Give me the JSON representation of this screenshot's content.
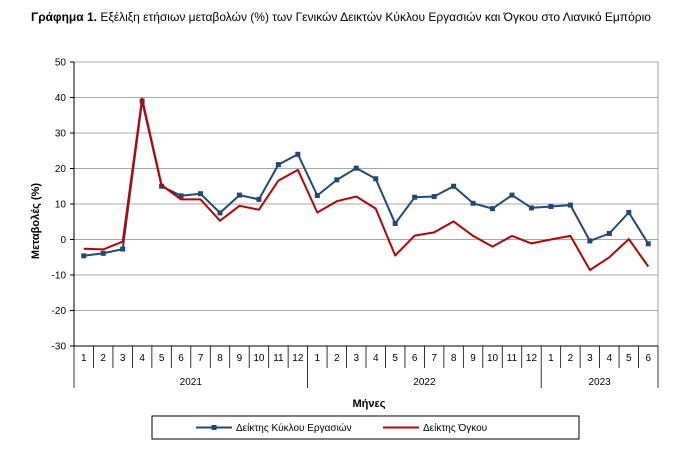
{
  "figure": {
    "label": "Γράφημα 1.",
    "caption": "Εξέλιξη ετήσιων μεταβολών (%) των Γενικών Δεικτών Κύκλου Εργασιών και Όγκου στο Λιανικό Εμπόριο"
  },
  "colors": {
    "turnover": "#1F497D",
    "volume": "#C00000",
    "grid": "#8C8C8C",
    "axis": "#000000"
  },
  "chart_data": {
    "type": "line",
    "ylabel": "Μεταβολές (%)",
    "xlabel": "Μήνες",
    "ylim": [
      -30,
      50
    ],
    "yticks": [
      -30,
      -20,
      -10,
      0,
      10,
      20,
      30,
      40,
      50
    ],
    "grid": true,
    "legend_position": "bottom",
    "months": [
      "1",
      "2",
      "3",
      "4",
      "5",
      "6",
      "7",
      "8",
      "9",
      "10",
      "11",
      "12",
      "1",
      "2",
      "3",
      "4",
      "5",
      "6",
      "7",
      "8",
      "9",
      "10",
      "11",
      "12",
      "1",
      "2",
      "3",
      "4",
      "5",
      "6"
    ],
    "years": [
      {
        "label": "2021",
        "count": 12
      },
      {
        "label": "2022",
        "count": 12
      },
      {
        "label": "2023",
        "count": 6
      }
    ],
    "series": [
      {
        "name": "Δείκτης Κύκλου Εργασιών",
        "color": "#1F497D",
        "marker": "square",
        "values": [
          -4.6,
          -3.9,
          -2.7,
          39.0,
          15.0,
          12.3,
          12.9,
          7.5,
          12.5,
          11.3,
          21.1,
          24.0,
          12.4,
          16.8,
          20.1,
          17.1,
          4.5,
          11.9,
          12.1,
          15.0,
          10.2,
          8.7,
          12.5,
          8.9,
          9.3,
          9.7,
          -0.4,
          1.7,
          7.6,
          -1.2
        ]
      },
      {
        "name": "Δείκτης Όγκου",
        "color": "#C00000",
        "marker": "none",
        "values": [
          -2.6,
          -2.8,
          -0.6,
          39.7,
          15.3,
          11.3,
          11.3,
          5.3,
          9.5,
          8.4,
          16.6,
          19.6,
          7.6,
          10.8,
          12.1,
          8.7,
          -4.5,
          1.1,
          2.0,
          5.1,
          1.0,
          -2.0,
          1.0,
          -1.1,
          0.0,
          1.0,
          -8.6,
          -5.0,
          0.1,
          -7.6
        ]
      }
    ]
  }
}
